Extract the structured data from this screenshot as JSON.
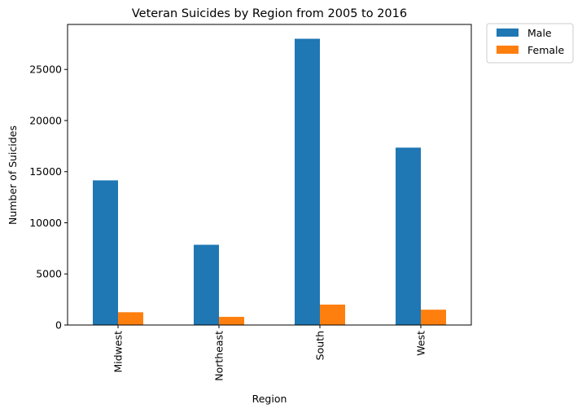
{
  "chart_data": {
    "type": "bar",
    "title": "Veteran Suicides by Region from 2005 to 2016",
    "xlabel": "Region",
    "ylabel": "Number of Suicides",
    "categories": [
      "Midwest",
      "Northeast",
      "South",
      "West"
    ],
    "series": [
      {
        "name": "Male",
        "color": "#1f77b4",
        "values": [
          14150,
          7850,
          28000,
          17350
        ]
      },
      {
        "name": "Female",
        "color": "#ff7f0e",
        "values": [
          1250,
          800,
          2000,
          1500
        ]
      }
    ],
    "ylim": [
      0,
      29400
    ],
    "yticks": [
      0,
      5000,
      10000,
      15000,
      20000,
      25000
    ],
    "grid": false,
    "legend_position": "outside top-right"
  }
}
